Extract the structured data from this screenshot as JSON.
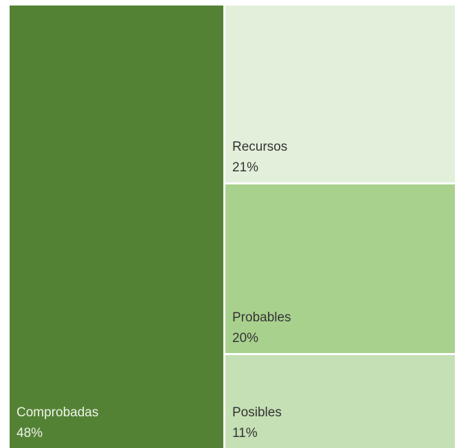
{
  "chart_data": {
    "type": "treemap",
    "items": [
      {
        "name": "Comprobadas",
        "value": 48,
        "label": "48%",
        "color": "#548235"
      },
      {
        "name": "Recursos",
        "value": 21,
        "label": "21%",
        "color": "#e2efda"
      },
      {
        "name": "Probables",
        "value": 20,
        "label": "20%",
        "color": "#a9d18e"
      },
      {
        "name": "Posibles",
        "value": 11,
        "label": "11%",
        "color": "#c5e0b4"
      }
    ],
    "legend": "none"
  }
}
